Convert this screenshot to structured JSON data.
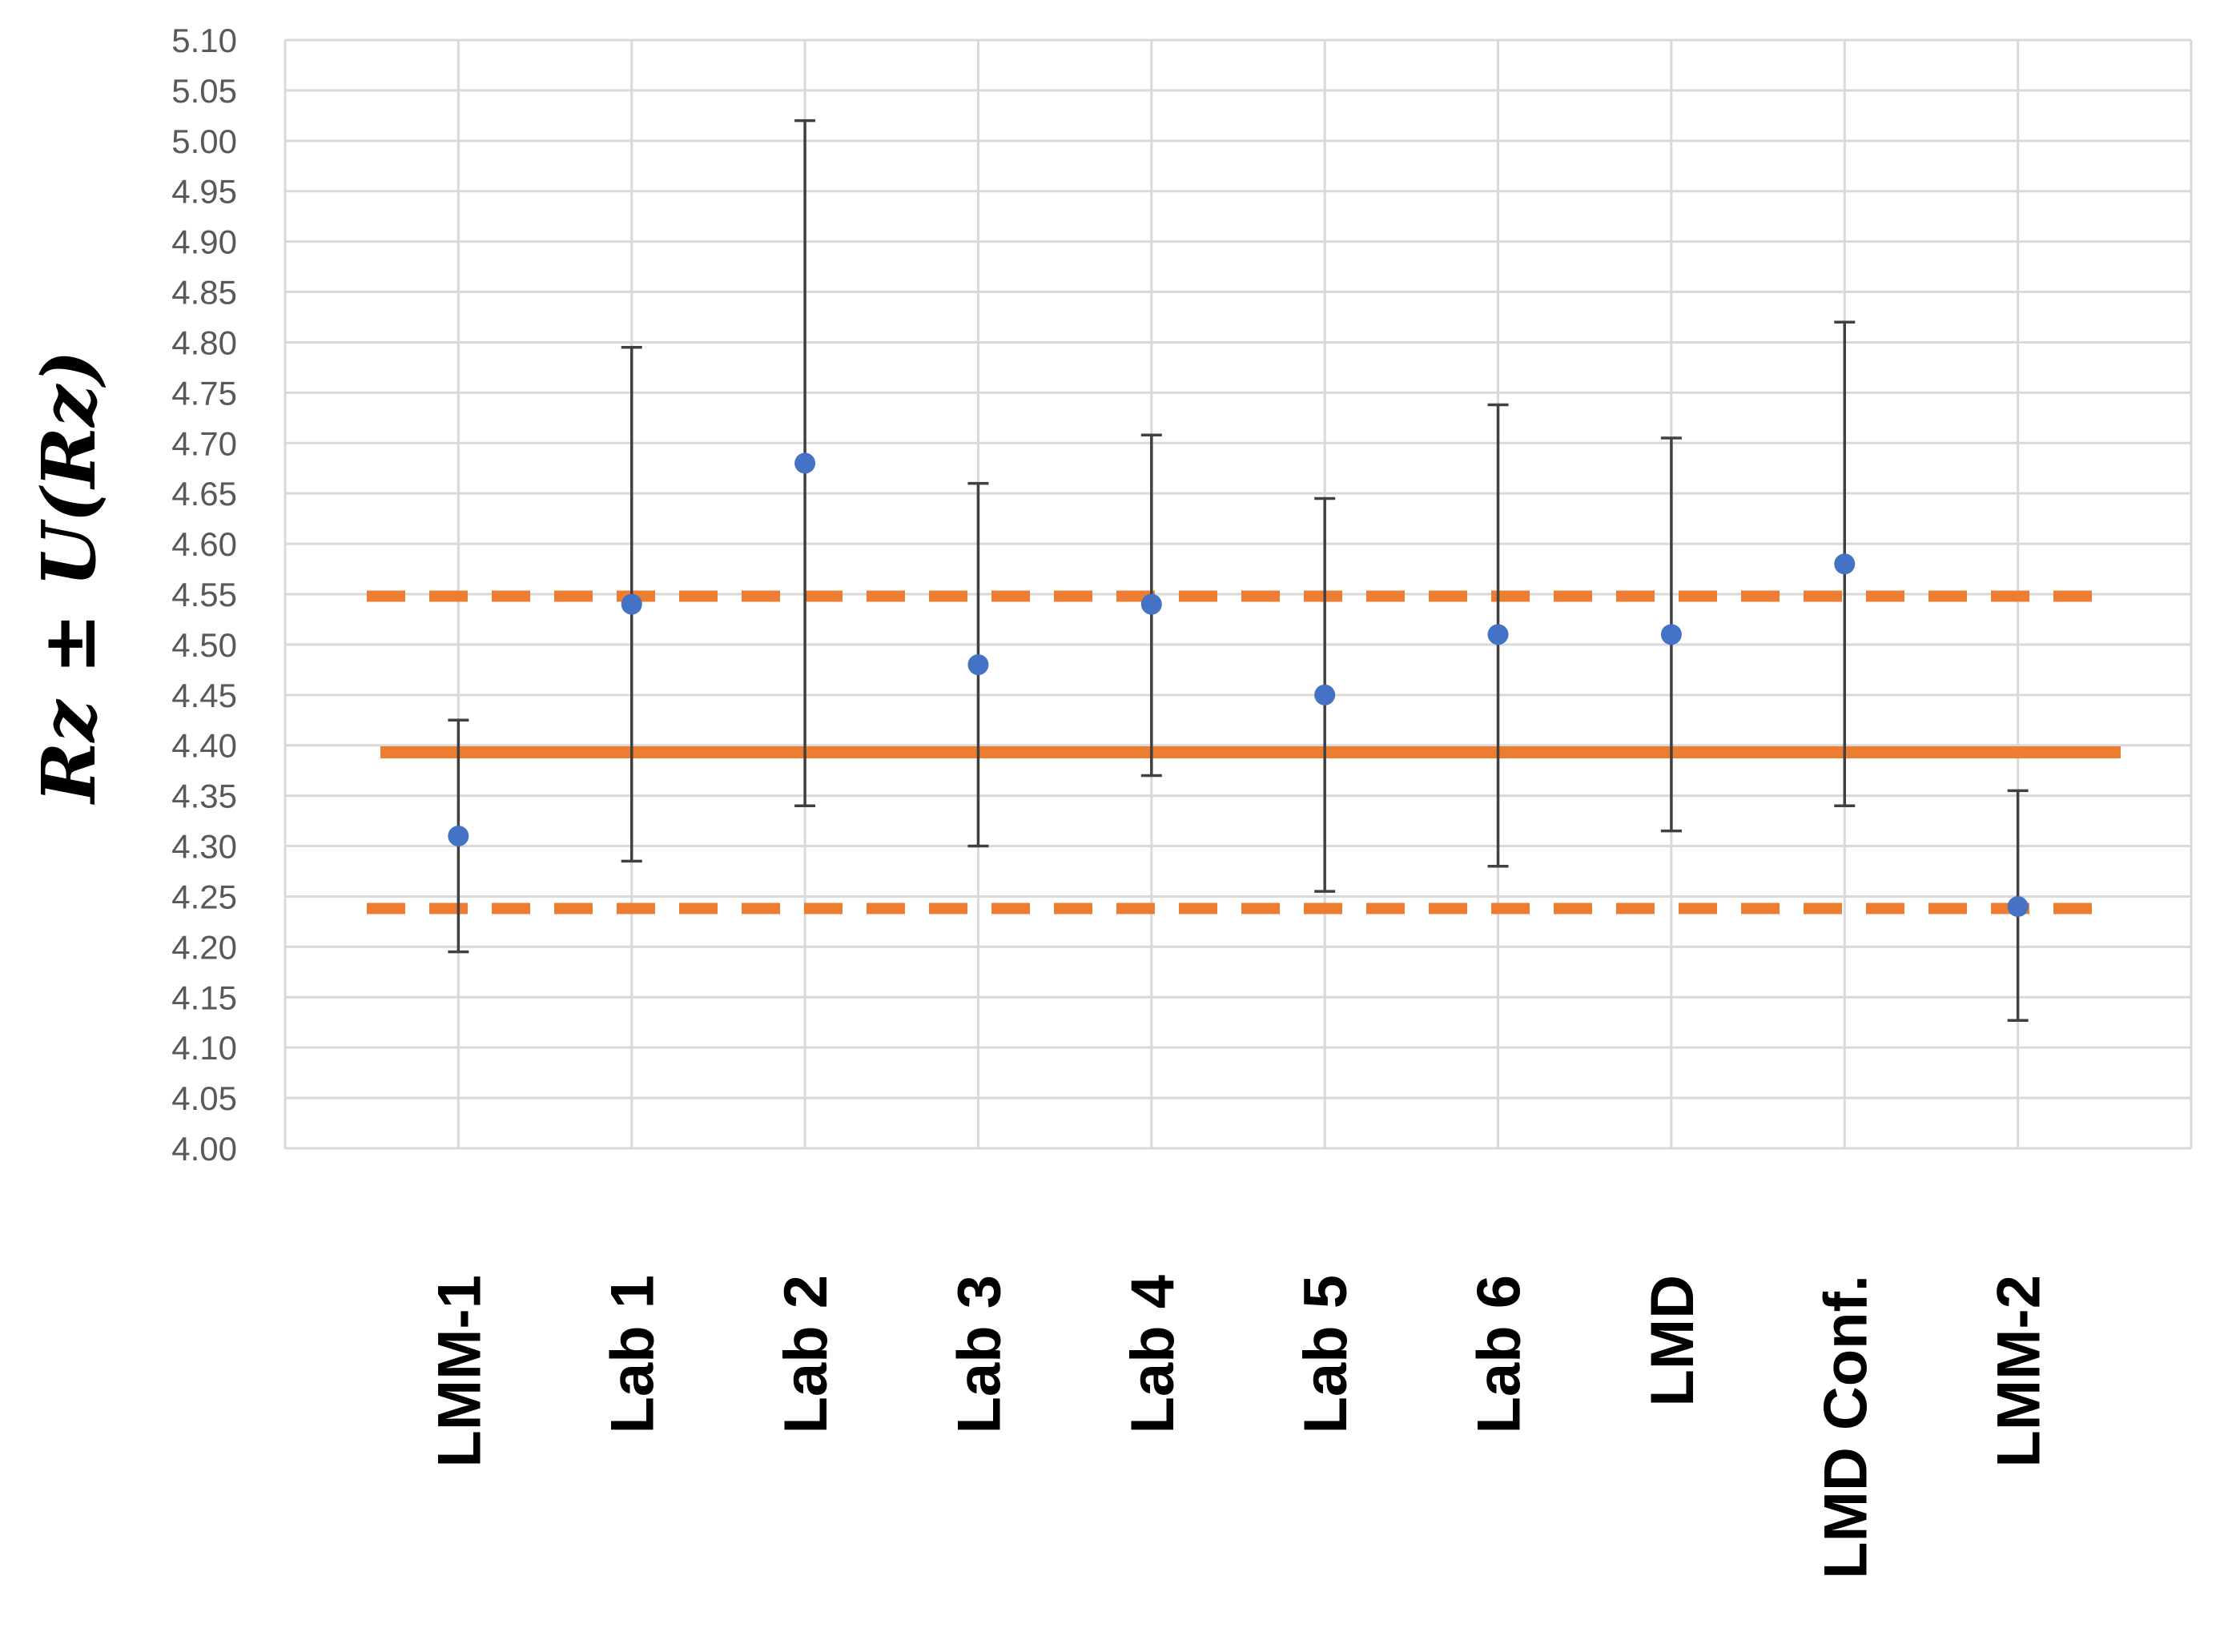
{
  "chart_data": {
    "type": "scatter",
    "title": "",
    "xlabel": "",
    "ylabel": "Rz ± U(Rz)",
    "ylim": [
      4.0,
      5.1
    ],
    "yticks": [
      "4.00",
      "4.05",
      "4.10",
      "4.15",
      "4.20",
      "4.25",
      "4.30",
      "4.35",
      "4.40",
      "4.45",
      "4.50",
      "4.55",
      "4.60",
      "4.65",
      "4.70",
      "4.75",
      "4.80",
      "4.85",
      "4.90",
      "4.95",
      "5.00",
      "5.05",
      "5.10"
    ],
    "grid": true,
    "legend": "none",
    "categories": [
      "LMM-1",
      "Lab 1",
      "Lab 2",
      "Lab 3",
      "Lab 4",
      "Lab 5",
      "Lab 6",
      "LMD",
      "LMD Conf.",
      "LMM-2"
    ],
    "series": [
      {
        "values": [
          4.31,
          4.54,
          4.68,
          4.48,
          4.54,
          4.45,
          4.51,
          4.51,
          4.58,
          4.24
        ],
        "error_low": [
          4.195,
          4.285,
          4.34,
          4.3,
          4.37,
          4.255,
          4.28,
          4.315,
          4.34,
          4.127
        ],
        "error_high": [
          4.425,
          4.795,
          5.02,
          4.66,
          4.708,
          4.645,
          4.738,
          4.705,
          4.82,
          4.355
        ],
        "color": "#4472C4"
      }
    ],
    "reference_lines": [
      {
        "style": "solid",
        "value": 4.393,
        "color": "#ED7D31"
      },
      {
        "style": "dashed",
        "value": 4.548,
        "color": "#ED7D31"
      },
      {
        "style": "dashed",
        "value": 4.238,
        "color": "#ED7D31"
      }
    ],
    "colors": {
      "grid": "#D9D9D9",
      "error_bar": "#404040",
      "tick_text": "#595959"
    }
  }
}
